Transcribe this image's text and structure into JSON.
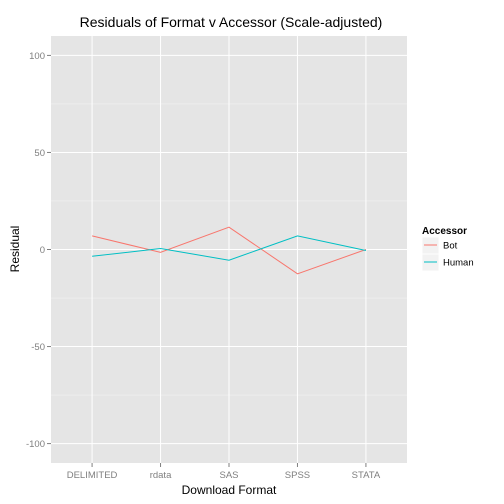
{
  "chart_data": {
    "type": "line",
    "title": "Residuals of Format v Accessor (Scale-adjusted)",
    "xlabel": "Download Format",
    "ylabel": "Residual",
    "categories": [
      "DELIMITED",
      "rdata",
      "SAS",
      "SPSS",
      "STATA"
    ],
    "ylim": [
      -110,
      110
    ],
    "yticks": [
      -100,
      -50,
      0,
      50,
      100
    ],
    "grid": true,
    "legend": {
      "title": "Accessor",
      "position": "right"
    },
    "series": [
      {
        "name": "Bot",
        "color": "#F8766D",
        "values": [
          7,
          -1.5,
          11.5,
          -12.5,
          0
        ]
      },
      {
        "name": "Human",
        "color": "#00BFC4",
        "values": [
          -3.5,
          0.5,
          -5.5,
          7,
          -0.5
        ]
      }
    ]
  }
}
